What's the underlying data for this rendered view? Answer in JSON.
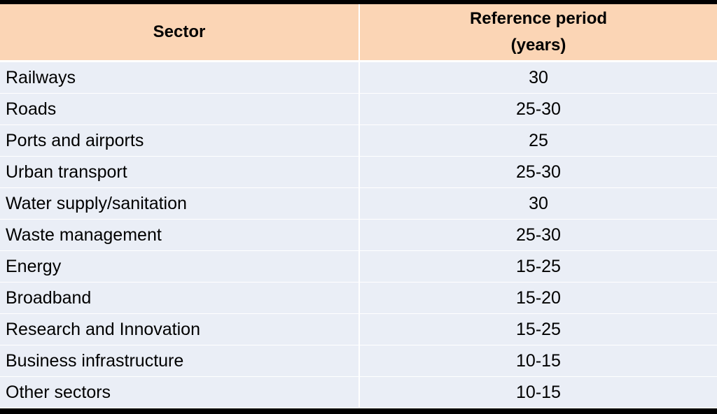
{
  "table": {
    "headers": {
      "sector": "Sector",
      "period_line1": "Reference period",
      "period_line2": "(years)"
    },
    "rows": [
      {
        "sector": "Railways",
        "period": "30"
      },
      {
        "sector": "Roads",
        "period": "25-30"
      },
      {
        "sector": "Ports and airports",
        "period": "25"
      },
      {
        "sector": "Urban transport",
        "period": "25-30"
      },
      {
        "sector": "Water supply/sanitation",
        "period": "30"
      },
      {
        "sector": "Waste management",
        "period": "25-30"
      },
      {
        "sector": "Energy",
        "period": "15-25"
      },
      {
        "sector": "Broadband",
        "period": "15-20"
      },
      {
        "sector": "Research and Innovation",
        "period": "15-25"
      },
      {
        "sector": "Business infrastructure",
        "period": "10-15"
      },
      {
        "sector": "Other sectors",
        "period": "10-15"
      }
    ]
  },
  "colors": {
    "header_bg": "#fbd5b5",
    "row_bg": "#eaeef6",
    "frame_bg": "#000000"
  }
}
